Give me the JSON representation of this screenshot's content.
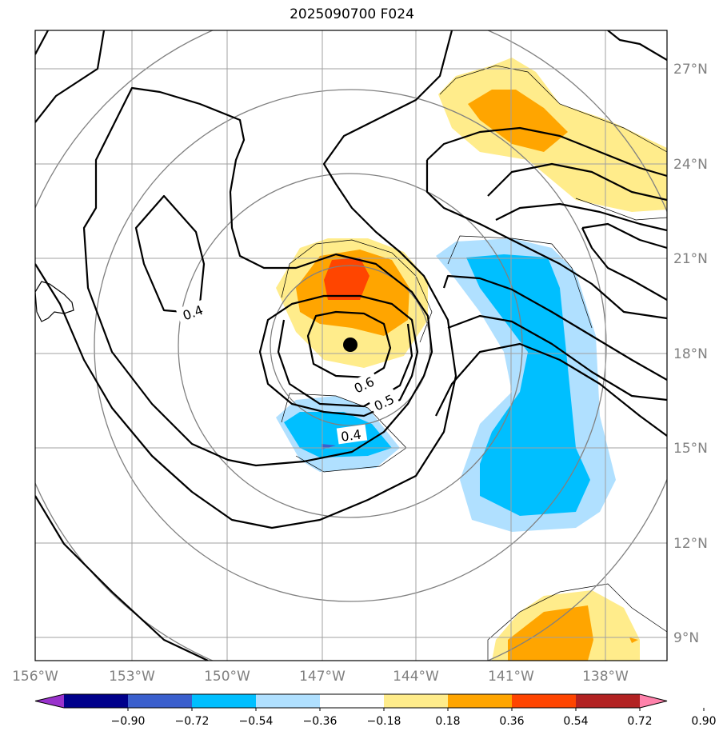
{
  "title": "2025090700 F024",
  "lon_labels": [
    "156°W",
    "153°W",
    "150°W",
    "147°W",
    "144°W",
    "141°W",
    "138°W"
  ],
  "lat_labels": [
    "27°N",
    "24°N",
    "21°N",
    "18°N",
    "15°N",
    "12°N",
    "9°N"
  ],
  "colorbar": {
    "ticks": [
      "−0.90",
      "−0.72",
      "−0.54",
      "−0.36",
      "−0.18",
      "0.18",
      "0.36",
      "0.54",
      "0.72",
      "0.90"
    ],
    "colors": [
      "#9932cc",
      "#00008b",
      "#3a5fcd",
      "#00bfff",
      "#b0e0ff",
      "#ffffff",
      "#ffec8b",
      "#ffa500",
      "#ff4500",
      "#b22222",
      "#ff82ab"
    ]
  },
  "contour_labels": [
    "0.4",
    "0.6",
    "0.5",
    "0.4"
  ],
  "colors": {
    "land_outline": "#000000",
    "grid": "#a0a0a0",
    "range_ring": "#808080"
  }
}
